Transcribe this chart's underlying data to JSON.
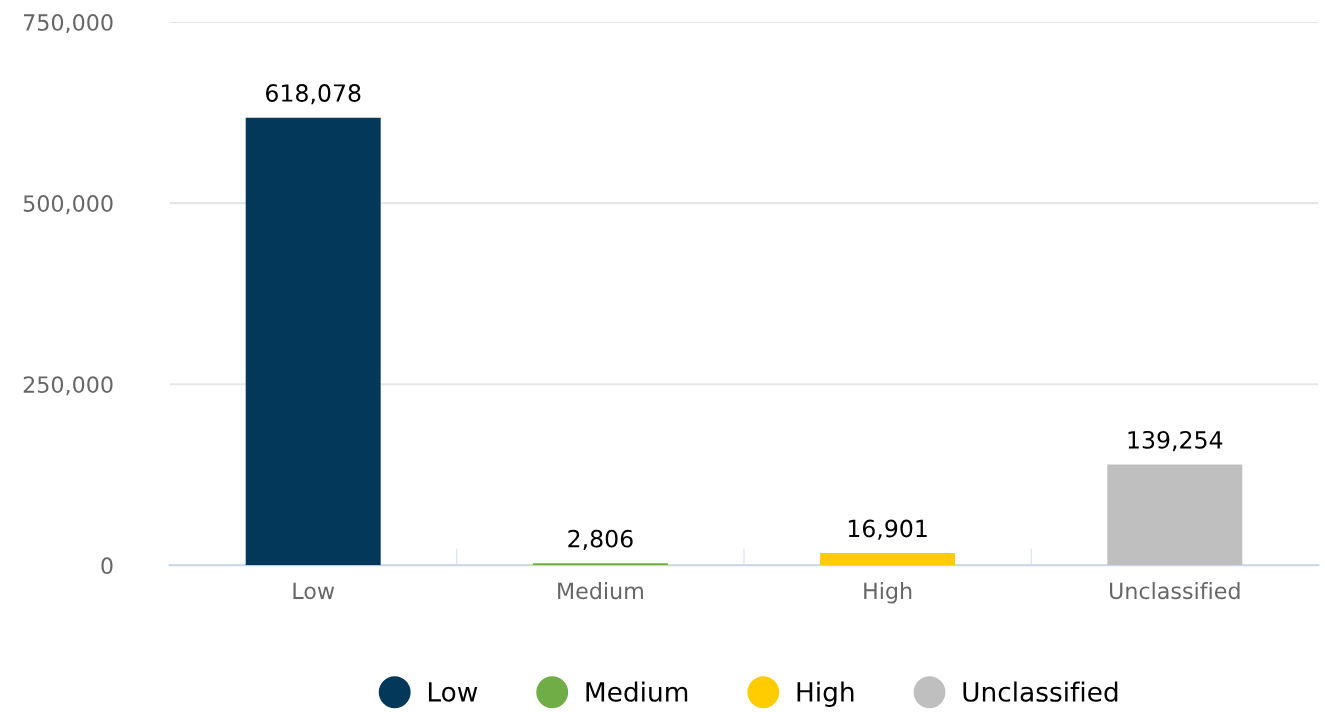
{
  "chart_data": {
    "type": "bar",
    "categories": [
      "Low",
      "Medium",
      "High",
      "Unclassified"
    ],
    "series": [
      {
        "name": "Low",
        "color": "#03385a",
        "values": [
          618078,
          null,
          null,
          null
        ],
        "value_labels": [
          "618,078",
          null,
          null,
          null
        ]
      },
      {
        "name": "Medium",
        "color": "#70ad47",
        "values": [
          null,
          2806,
          null,
          null
        ],
        "value_labels": [
          null,
          "2,806",
          null,
          null
        ]
      },
      {
        "name": "High",
        "color": "#ffcc00",
        "values": [
          null,
          null,
          16901,
          null
        ],
        "value_labels": [
          null,
          null,
          "16,901",
          null
        ]
      },
      {
        "name": "Unclassified",
        "color": "#bfbfbf",
        "values": [
          null,
          null,
          null,
          139254
        ],
        "value_labels": [
          null,
          null,
          null,
          "139,254"
        ]
      }
    ],
    "ylim": [
      0,
      750000
    ],
    "yticks": [
      {
        "value": 0,
        "label": "0"
      },
      {
        "value": 250000,
        "label": "250,000"
      },
      {
        "value": 500000,
        "label": "500,000"
      },
      {
        "value": 750000,
        "label": "750,000"
      }
    ],
    "grid": "y",
    "legend": "bottom"
  }
}
